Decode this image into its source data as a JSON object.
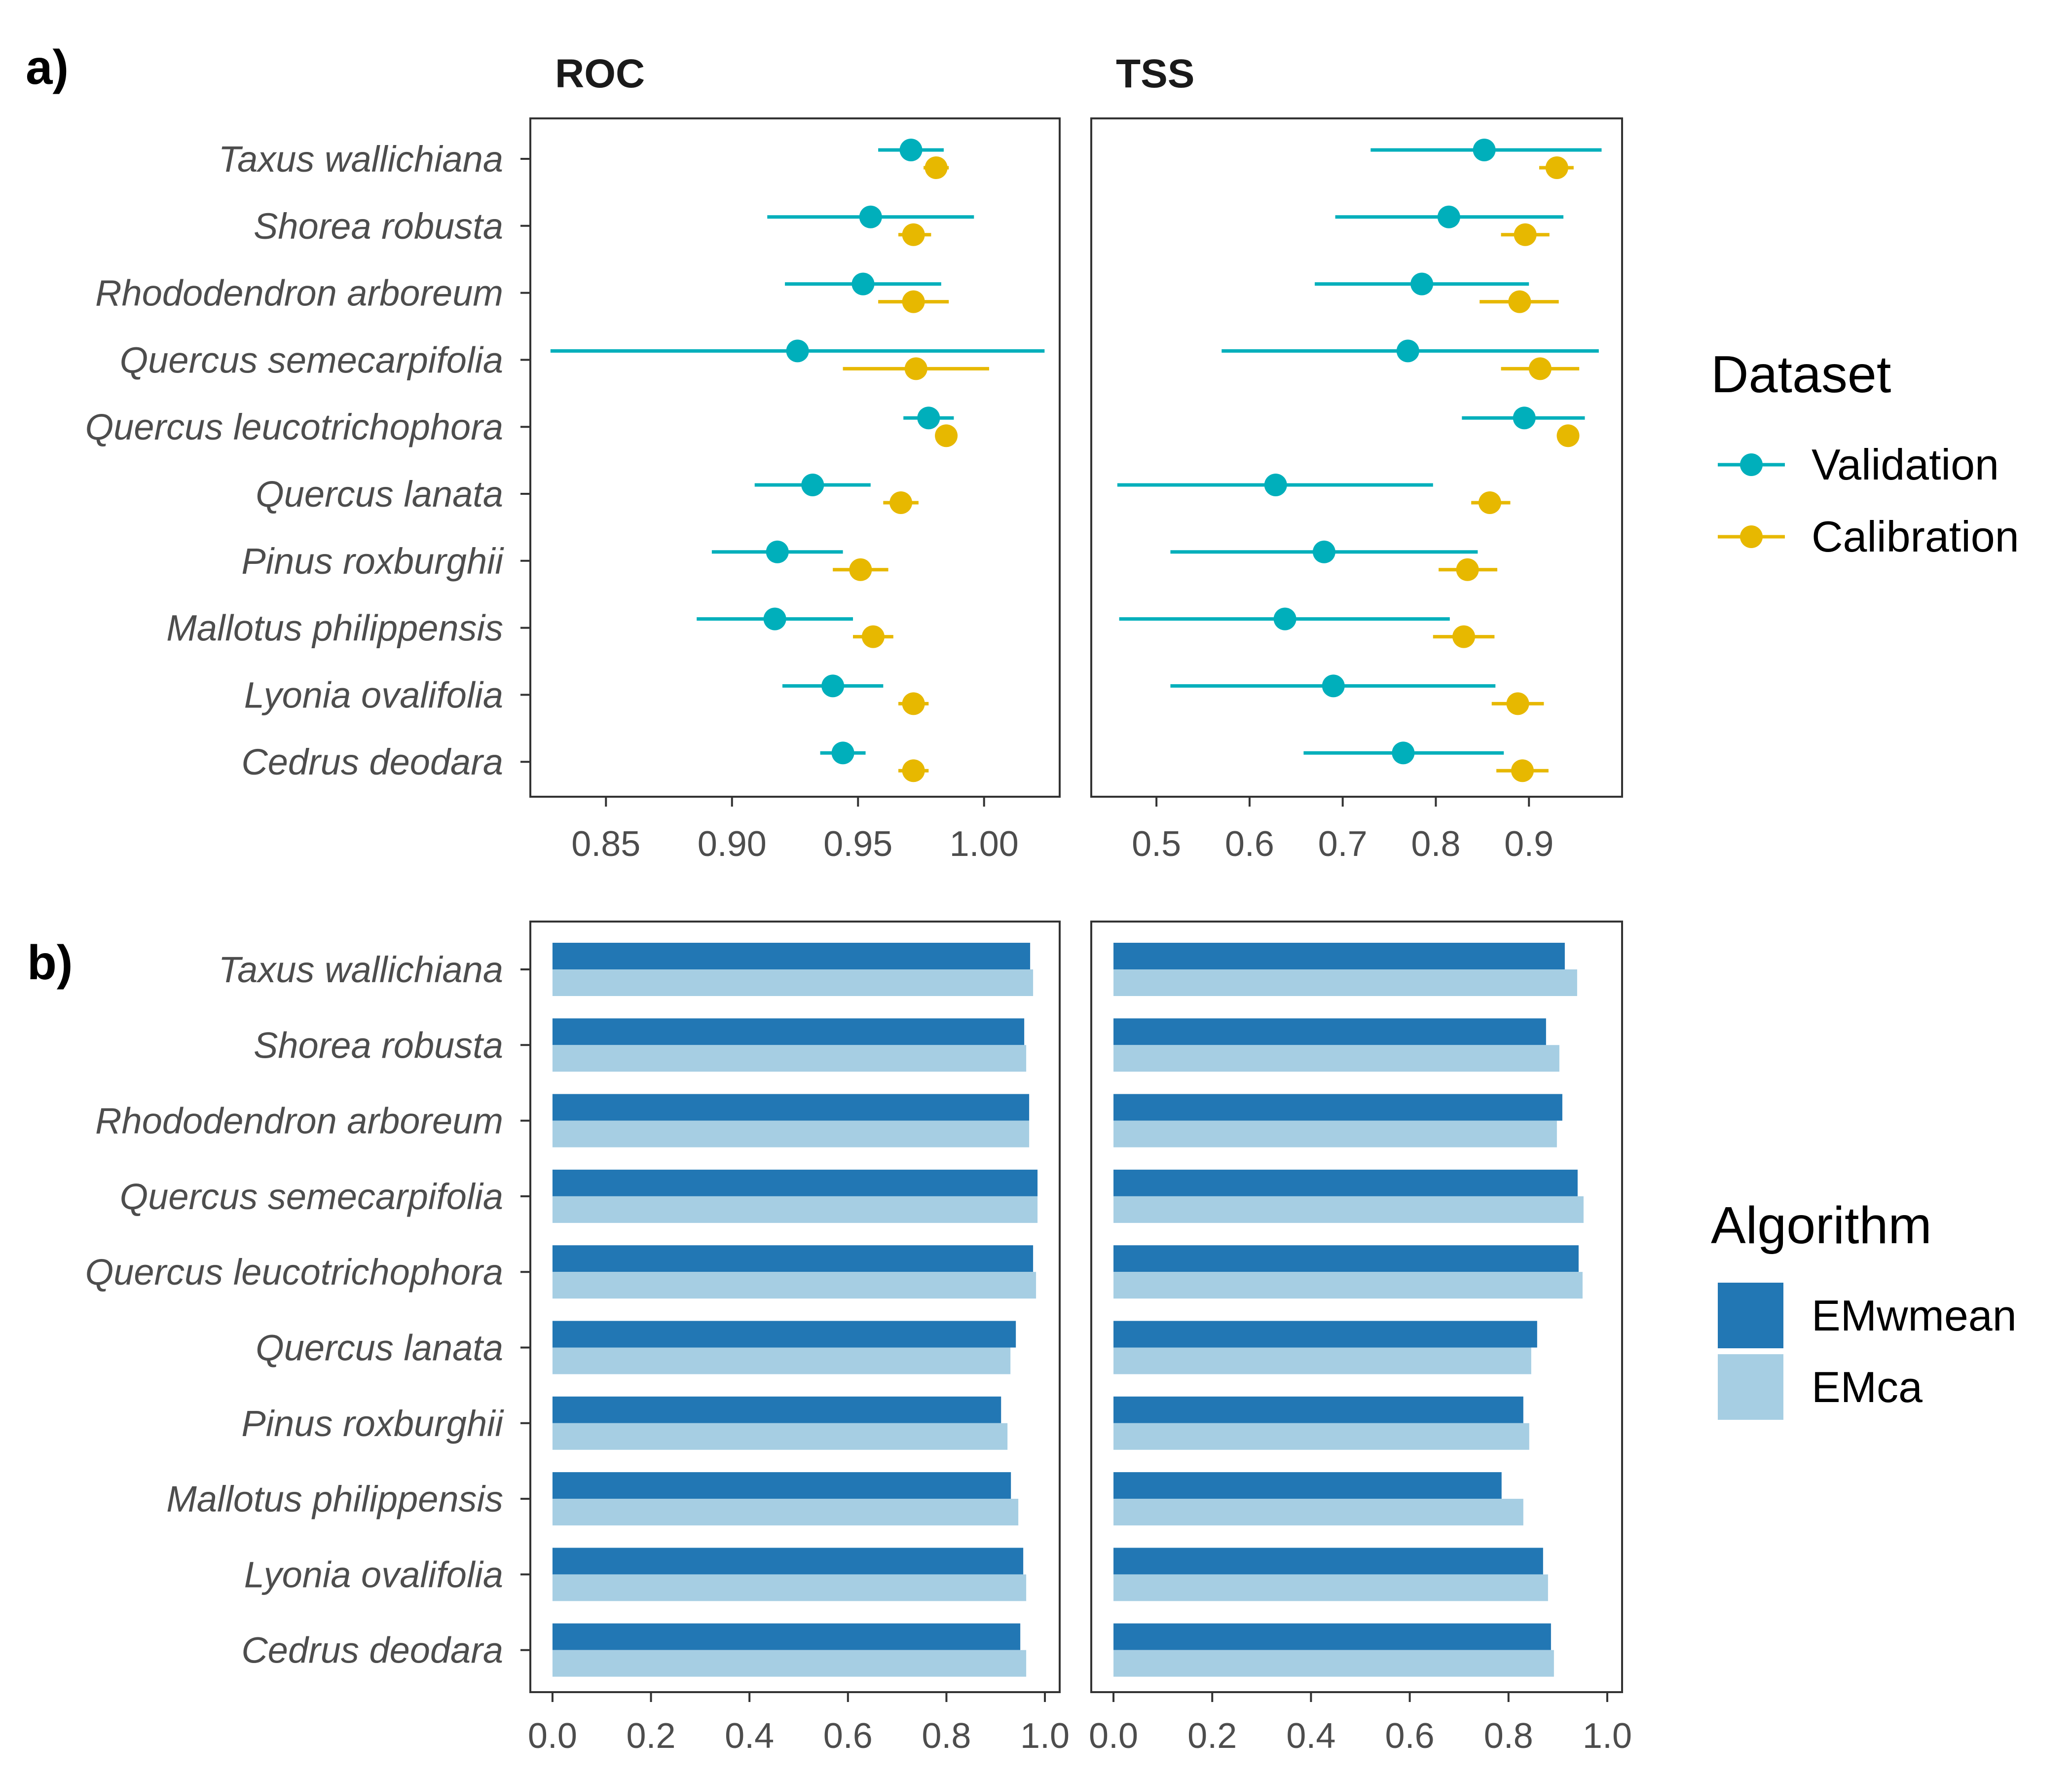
{
  "figure": {
    "panel_a_label": "a)",
    "panel_b_label": "b)"
  },
  "legend_a": {
    "title": "Dataset",
    "entries": [
      {
        "label": "Validation",
        "color": "#00AFBB"
      },
      {
        "label": "Calibration",
        "color": "#E7B800"
      }
    ]
  },
  "legend_b": {
    "title": "Algorithm",
    "entries": [
      {
        "label": "EMwmean",
        "color": "#2277B4"
      },
      {
        "label": "EMca",
        "color": "#A6CEE3"
      }
    ]
  },
  "chart_data": [
    {
      "type": "scatter",
      "subtype": "dot-with-error-bars",
      "facet": "ROC",
      "title": "ROC",
      "categories": [
        "Taxus wallichiana",
        "Shorea robusta",
        "Rhododendron arboreum",
        "Quercus semecarpifolia",
        "Quercus leucotrichophora",
        "Quercus lanata",
        "Pinus roxburghii",
        "Mallotus philippensis",
        "Lyonia ovalifolia",
        "Cedrus deodara"
      ],
      "xlim": [
        0.82,
        1.03
      ],
      "xticks": [
        "0.85",
        "0.90",
        "0.95",
        "1.00"
      ],
      "grid": false,
      "series": [
        {
          "name": "Validation",
          "color": "#00AFBB",
          "values": [
            0.971,
            0.955,
            0.952,
            0.926,
            0.978,
            0.932,
            0.918,
            0.917,
            0.94,
            0.944
          ],
          "lower": [
            0.958,
            0.914,
            0.921,
            0.828,
            0.968,
            0.909,
            0.892,
            0.886,
            0.92,
            0.935
          ],
          "upper": [
            0.984,
            0.996,
            0.983,
            1.024,
            0.988,
            0.955,
            0.944,
            0.948,
            0.96,
            0.953
          ]
        },
        {
          "name": "Calibration",
          "color": "#E7B800",
          "values": [
            0.981,
            0.972,
            0.972,
            0.973,
            0.985,
            0.967,
            0.951,
            0.956,
            0.972,
            0.972
          ],
          "lower": [
            0.976,
            0.966,
            0.958,
            0.944,
            0.981,
            0.96,
            0.94,
            0.948,
            0.966,
            0.966
          ],
          "upper": [
            0.986,
            0.979,
            0.986,
            1.002,
            0.989,
            0.974,
            0.962,
            0.964,
            0.978,
            0.978
          ]
        }
      ]
    },
    {
      "type": "scatter",
      "subtype": "dot-with-error-bars",
      "facet": "TSS",
      "title": "TSS",
      "categories": [
        "Taxus wallichiana",
        "Shorea robusta",
        "Rhododendron arboreum",
        "Quercus semecarpifolia",
        "Quercus leucotrichophora",
        "Quercus lanata",
        "Pinus roxburghii",
        "Mallotus philippensis",
        "Lyonia ovalifolia",
        "Cedrus deodara"
      ],
      "xlim": [
        0.43,
        1.0
      ],
      "xticks": [
        "0.5",
        "0.6",
        "0.7",
        "0.8",
        "0.9"
      ],
      "grid": false,
      "series": [
        {
          "name": "Validation",
          "color": "#00AFBB",
          "values": [
            0.852,
            0.814,
            0.785,
            0.77,
            0.895,
            0.628,
            0.68,
            0.638,
            0.69,
            0.765
          ],
          "lower": [
            0.73,
            0.692,
            0.67,
            0.57,
            0.828,
            0.458,
            0.515,
            0.46,
            0.515,
            0.658
          ],
          "upper": [
            0.978,
            0.937,
            0.9,
            0.975,
            0.96,
            0.797,
            0.845,
            0.815,
            0.864,
            0.873
          ]
        },
        {
          "name": "Calibration",
          "color": "#E7B800",
          "values": [
            0.93,
            0.896,
            0.89,
            0.912,
            0.942,
            0.858,
            0.834,
            0.83,
            0.888,
            0.893
          ],
          "lower": [
            0.911,
            0.87,
            0.847,
            0.87,
            0.931,
            0.838,
            0.803,
            0.797,
            0.86,
            0.865
          ],
          "upper": [
            0.948,
            0.922,
            0.932,
            0.954,
            0.952,
            0.88,
            0.866,
            0.863,
            0.916,
            0.921
          ]
        }
      ]
    },
    {
      "type": "bar",
      "orientation": "horizontal",
      "facet": "ROC",
      "categories": [
        "Taxus wallichiana",
        "Shorea robusta",
        "Rhododendron arboreum",
        "Quercus semecarpifolia",
        "Quercus leucotrichophora",
        "Quercus lanata",
        "Pinus roxburghii",
        "Mallotus philippensis",
        "Lyonia ovalifolia",
        "Cedrus deodara"
      ],
      "xlim": [
        -0.045,
        1.03
      ],
      "xticks": [
        "0.0",
        "0.2",
        "0.4",
        "0.6",
        "0.8",
        "1.0"
      ],
      "grid": false,
      "series": [
        {
          "name": "EMwmean",
          "color": "#2277B4",
          "values": [
            0.97,
            0.958,
            0.968,
            0.985,
            0.976,
            0.941,
            0.911,
            0.931,
            0.956,
            0.95
          ]
        },
        {
          "name": "EMca",
          "color": "#A6CEE3",
          "values": [
            0.976,
            0.962,
            0.968,
            0.985,
            0.982,
            0.93,
            0.924,
            0.946,
            0.962,
            0.962
          ]
        }
      ]
    },
    {
      "type": "bar",
      "orientation": "horizontal",
      "facet": "TSS",
      "categories": [
        "Taxus wallichiana",
        "Shorea robusta",
        "Rhododendron arboreum",
        "Quercus semecarpifolia",
        "Quercus leucotrichophora",
        "Quercus lanata",
        "Pinus roxburghii",
        "Mallotus philippensis",
        "Lyonia ovalifolia",
        "Cedrus deodara"
      ],
      "xlim": [
        -0.045,
        1.03
      ],
      "xticks": [
        "0.0",
        "0.2",
        "0.4",
        "0.6",
        "0.8",
        "1.0"
      ],
      "grid": false,
      "series": [
        {
          "name": "EMwmean",
          "color": "#2277B4",
          "values": [
            0.914,
            0.876,
            0.909,
            0.94,
            0.942,
            0.858,
            0.83,
            0.786,
            0.87,
            0.886
          ]
        },
        {
          "name": "EMca",
          "color": "#A6CEE3",
          "values": [
            0.939,
            0.903,
            0.898,
            0.952,
            0.95,
            0.846,
            0.842,
            0.83,
            0.88,
            0.892
          ]
        }
      ]
    }
  ]
}
